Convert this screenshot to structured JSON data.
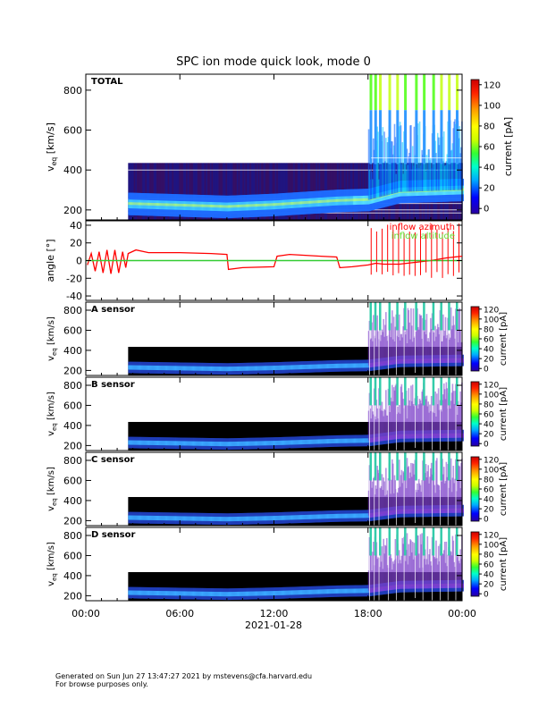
{
  "chart_data": [
    {
      "type": "heatmap",
      "title": "SPC ion mode quick look, mode 0",
      "panel_label": "TOTAL",
      "ylabel_main": "v",
      "ylabel_sub": "eq",
      "ylabel_unit": " [km/s]",
      "ylim": [
        150,
        880
      ],
      "yticks": [
        200,
        400,
        600,
        800
      ],
      "colorbar": {
        "label": "current [pA]",
        "range": [
          -5,
          125
        ],
        "ticks": [
          0,
          20,
          40,
          60,
          80,
          100,
          120
        ]
      },
      "data_start_hour": 2.7,
      "data_top_kms": 435,
      "beam_kms": [
        [
          2.7,
          230
        ],
        [
          9,
          215
        ],
        [
          12,
          225
        ],
        [
          16,
          245
        ],
        [
          18,
          250
        ],
        [
          20,
          290
        ],
        [
          24,
          300
        ]
      ],
      "spike_hours": [
        18.1,
        18.4,
        18.7,
        19.3,
        19.8,
        20.3,
        21.0,
        21.5,
        22.1,
        22.6,
        23.1,
        23.6
      ]
    },
    {
      "type": "line",
      "ylabel": "angle [°]",
      "ylim": [
        -45,
        45
      ],
      "yticks": [
        -40,
        -20,
        0,
        20,
        40
      ],
      "series": [
        {
          "name": "inflow azimuth",
          "color": "#ff0000",
          "points": [
            [
              0.1,
              -5
            ],
            [
              0.35,
              8
            ],
            [
              0.6,
              -12
            ],
            [
              0.85,
              10
            ],
            [
              1.1,
              -14
            ],
            [
              1.35,
              12
            ],
            [
              1.6,
              -15
            ],
            [
              1.85,
              12
            ],
            [
              2.1,
              -14
            ],
            [
              2.35,
              10
            ],
            [
              2.55,
              -8
            ],
            [
              2.7,
              8
            ],
            [
              3.2,
              12
            ],
            [
              4,
              9
            ],
            [
              6,
              9
            ],
            [
              8,
              8
            ],
            [
              9.0,
              7
            ],
            [
              9.1,
              -10
            ],
            [
              10,
              -8
            ],
            [
              12,
              -7
            ],
            [
              12.2,
              5
            ],
            [
              13,
              7
            ],
            [
              14,
              6
            ],
            [
              15,
              5
            ],
            [
              16,
              4
            ],
            [
              16.2,
              -8
            ],
            [
              17,
              -7
            ],
            [
              18,
              -5
            ],
            [
              18.5,
              -3
            ],
            [
              19,
              -4
            ],
            [
              20,
              -4
            ],
            [
              21,
              -2
            ],
            [
              22,
              0
            ],
            [
              23,
              3
            ],
            [
              24,
              5
            ]
          ]
        },
        {
          "name": "inflow altitude",
          "color": "#33cc33",
          "points": [
            [
              0,
              0
            ],
            [
              24,
              0
            ]
          ]
        }
      ]
    },
    {
      "type": "heatmap",
      "panel_label": "A sensor",
      "ylim": [
        150,
        880
      ],
      "yticks": [
        200,
        400,
        600,
        800
      ],
      "colorbar": {
        "label": "current [pA]",
        "range": [
          -5,
          125
        ],
        "ticks": [
          0,
          20,
          40,
          60,
          80,
          100,
          120
        ]
      }
    },
    {
      "type": "heatmap",
      "panel_label": "B sensor",
      "ylim": [
        150,
        880
      ],
      "yticks": [
        200,
        400,
        600,
        800
      ],
      "colorbar": {
        "label": "current [pA]",
        "range": [
          -5,
          125
        ],
        "ticks": [
          0,
          20,
          40,
          60,
          80,
          100,
          120
        ]
      }
    },
    {
      "type": "heatmap",
      "panel_label": "C sensor",
      "ylim": [
        150,
        880
      ],
      "yticks": [
        200,
        400,
        600,
        800
      ],
      "colorbar": {
        "label": "current [pA]",
        "range": [
          -5,
          125
        ],
        "ticks": [
          0,
          20,
          40,
          60,
          80,
          100,
          120
        ]
      }
    },
    {
      "type": "heatmap",
      "panel_label": "D sensor",
      "ylim": [
        150,
        880
      ],
      "yticks": [
        200,
        400,
        600,
        800
      ],
      "colorbar": {
        "label": "current [pA]",
        "range": [
          -5,
          125
        ],
        "ticks": [
          0,
          20,
          40,
          60,
          80,
          100,
          120
        ]
      }
    }
  ],
  "xaxis": {
    "range_hours": [
      0,
      24
    ],
    "ticks": [
      {
        "h": 0,
        "label": "00:00"
      },
      {
        "h": 6,
        "label": "06:00"
      },
      {
        "h": 12,
        "label": "12:00"
      },
      {
        "h": 18,
        "label": "18:00"
      },
      {
        "h": 24,
        "label": "00:00"
      }
    ],
    "date_label": "2021-01-28"
  },
  "footer": {
    "line1": "Generated on Sun Jun 27 13:47:27 2021 by mstevens@cfa.harvard.edu",
    "line2": "For browse purposes only."
  }
}
